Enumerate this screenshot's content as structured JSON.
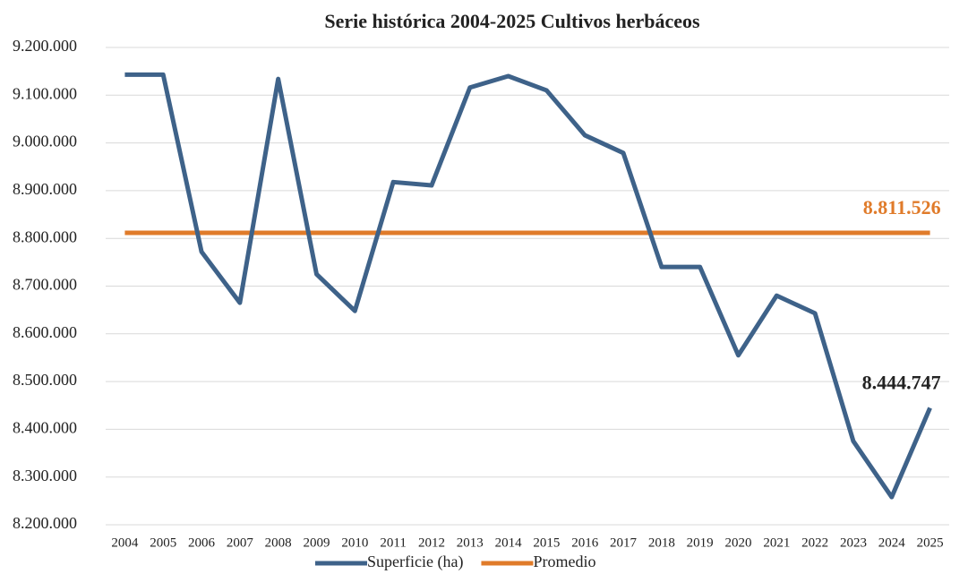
{
  "chart_data": {
    "type": "line",
    "title": "Serie histórica 2004-2025 Cultivos herbáceos",
    "categories": [
      "2004",
      "2005",
      "2006",
      "2007",
      "2008",
      "2009",
      "2010",
      "2011",
      "2012",
      "2013",
      "2014",
      "2015",
      "2016",
      "2017",
      "2018",
      "2019",
      "2020",
      "2021",
      "2022",
      "2023",
      "2024",
      "2025"
    ],
    "series": [
      {
        "name": "Superficie (ha)",
        "color": "#3e6289",
        "values": [
          9143000,
          9143000,
          8772000,
          8665000,
          9134000,
          8725000,
          8648000,
          8918000,
          8911000,
          9116000,
          9140000,
          9110000,
          9016000,
          8979000,
          8740000,
          8740000,
          8555000,
          8680000,
          8643000,
          8375000,
          8258000,
          8444747
        ],
        "value_labels": [
          null,
          null,
          null,
          null,
          null,
          null,
          null,
          null,
          null,
          null,
          null,
          null,
          null,
          null,
          null,
          null,
          null,
          null,
          null,
          null,
          null,
          "8.444.747"
        ],
        "label_color": "#222222"
      },
      {
        "name": "Promedio",
        "color": "#e07b2a",
        "values": [
          8811526,
          8811526,
          8811526,
          8811526,
          8811526,
          8811526,
          8811526,
          8811526,
          8811526,
          8811526,
          8811526,
          8811526,
          8811526,
          8811526,
          8811526,
          8811526,
          8811526,
          8811526,
          8811526,
          8811526,
          8811526,
          8811526
        ],
        "value_labels": [
          null,
          null,
          null,
          null,
          null,
          null,
          null,
          null,
          null,
          null,
          null,
          null,
          null,
          null,
          null,
          null,
          null,
          null,
          null,
          null,
          null,
          "8.811.526"
        ],
        "label_color": "#e07b2a"
      }
    ],
    "ylim": [
      8200000,
      9200000
    ],
    "yticks": [
      {
        "value": 8200000,
        "label": "8.200.000"
      },
      {
        "value": 8300000,
        "label": "8.300.000"
      },
      {
        "value": 8400000,
        "label": "8.400.000"
      },
      {
        "value": 8500000,
        "label": "8.500.000"
      },
      {
        "value": 8600000,
        "label": "8.600.000"
      },
      {
        "value": 8700000,
        "label": "8.700.000"
      },
      {
        "value": 8800000,
        "label": "8.800.000"
      },
      {
        "value": 8900000,
        "label": "8.900.000"
      },
      {
        "value": 9000000,
        "label": "9.000.000"
      },
      {
        "value": 9100000,
        "label": "9.100.000"
      },
      {
        "value": 9200000,
        "label": "9.200.000"
      }
    ],
    "grid": true,
    "legend": "bottom"
  }
}
